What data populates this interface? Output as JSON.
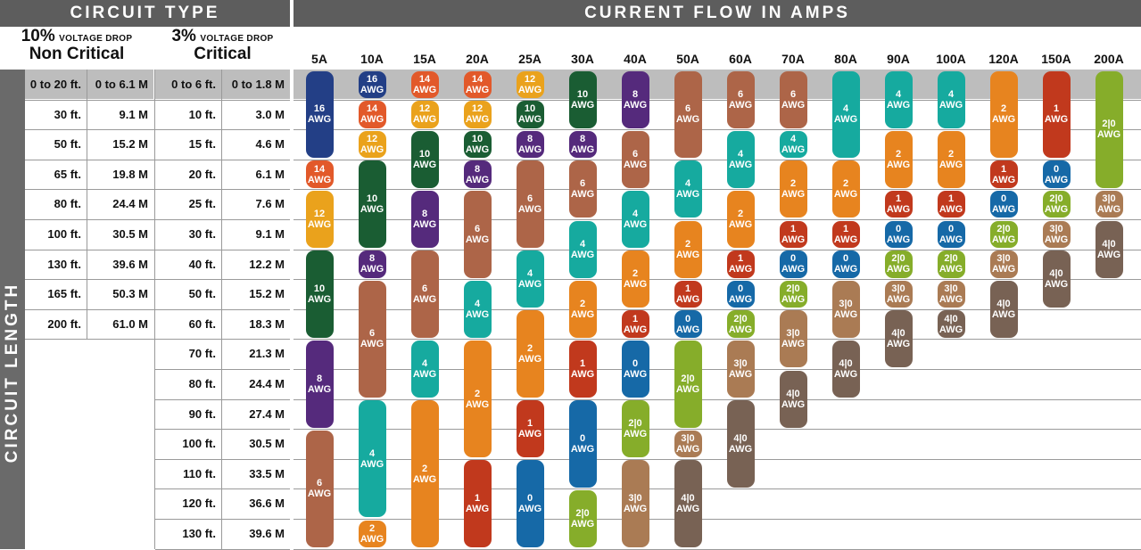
{
  "headers": {
    "circuit_type": "CIRCUIT TYPE",
    "current_flow": "CURRENT FLOW IN AMPS",
    "circuit_length": "CIRCUIT LENGTH",
    "drop10": {
      "pct": "10%",
      "label": "VOLTAGE DROP",
      "name": "Non Critical"
    },
    "drop3": {
      "pct": "3%",
      "label": "VOLTAGE DROP",
      "name": "Critical"
    }
  },
  "colors": {
    "16": "#233f86",
    "14": "#e2592a",
    "12": "#eaa21c",
    "10": "#1a5d33",
    "8": "#552a7c",
    "6": "#ad6548",
    "4": "#16aa9f",
    "2": "#e7841f",
    "1": "#c1391d",
    "0": "#1669a7",
    "2/0": "#86ad2a",
    "3/0": "#aa7b54",
    "4/0": "#786254"
  },
  "chart_data": {
    "type": "table",
    "amps": [
      "5A",
      "10A",
      "15A",
      "20A",
      "25A",
      "30A",
      "40A",
      "50A",
      "60A",
      "70A",
      "80A",
      "90A",
      "100A",
      "120A",
      "150A",
      "200A"
    ],
    "lengths_10pct": [
      [
        "0 to 20 ft.",
        "0 to 6.1 M"
      ],
      [
        "30 ft.",
        "9.1 M"
      ],
      [
        "50 ft.",
        "15.2 M"
      ],
      [
        "65 ft.",
        "19.8 M"
      ],
      [
        "80 ft.",
        "24.4 M"
      ],
      [
        "100 ft.",
        "30.5 M"
      ],
      [
        "130 ft.",
        "39.6 M"
      ],
      [
        "165 ft.",
        "50.3 M"
      ],
      [
        "200 ft.",
        "61.0 M"
      ]
    ],
    "lengths_3pct": [
      [
        "0 to 6 ft.",
        "0 to 1.8 M"
      ],
      [
        "10 ft.",
        "3.0 M"
      ],
      [
        "15 ft.",
        "4.6 M"
      ],
      [
        "20 ft.",
        "6.1 M"
      ],
      [
        "25 ft.",
        "7.6 M"
      ],
      [
        "30 ft.",
        "9.1 M"
      ],
      [
        "40 ft.",
        "12.2 M"
      ],
      [
        "50 ft.",
        "15.2 M"
      ],
      [
        "60 ft.",
        "18.3 M"
      ],
      [
        "70 ft.",
        "21.3 M"
      ],
      [
        "80 ft.",
        "24.4 M"
      ],
      [
        "90 ft.",
        "27.4 M"
      ],
      [
        "100 ft.",
        "30.5 M"
      ],
      [
        "110 ft.",
        "33.5 M"
      ],
      [
        "120 ft.",
        "36.6 M"
      ],
      [
        "130 ft.",
        "39.6 M"
      ]
    ],
    "awg_unit": "AWG",
    "gauges": [
      [
        [
          "16",
          0,
          3
        ],
        [
          "14",
          3,
          4
        ],
        [
          "12",
          4,
          6
        ],
        [
          "10",
          6,
          9
        ],
        [
          "8",
          9,
          12
        ],
        [
          "6",
          12,
          16
        ]
      ],
      [
        [
          "16",
          0,
          1
        ],
        [
          "14",
          1,
          2
        ],
        [
          "12",
          2,
          3
        ],
        [
          "10",
          3,
          6
        ],
        [
          "8",
          6,
          7
        ],
        [
          "6",
          7,
          11
        ],
        [
          "4",
          11,
          15
        ],
        [
          "2",
          15,
          16
        ]
      ],
      [
        [
          "14",
          0,
          1
        ],
        [
          "12",
          1,
          2
        ],
        [
          "10",
          2,
          4
        ],
        [
          "8",
          4,
          6
        ],
        [
          "6",
          6,
          9
        ],
        [
          "4",
          9,
          11
        ],
        [
          "2",
          11,
          16
        ]
      ],
      [
        [
          "14",
          0,
          1
        ],
        [
          "12",
          1,
          2
        ],
        [
          "10",
          2,
          3
        ],
        [
          "8",
          3,
          4
        ],
        [
          "6",
          4,
          7
        ],
        [
          "4",
          7,
          9
        ],
        [
          "2",
          9,
          13
        ],
        [
          "1",
          13,
          16
        ]
      ],
      [
        [
          "12",
          0,
          1
        ],
        [
          "10",
          1,
          2
        ],
        [
          "8",
          2,
          3
        ],
        [
          "6",
          3,
          6
        ],
        [
          "4",
          6,
          8
        ],
        [
          "2",
          8,
          11
        ],
        [
          "1",
          11,
          13
        ],
        [
          "0",
          13,
          16
        ]
      ],
      [
        [
          "10",
          0,
          2
        ],
        [
          "8",
          2,
          3
        ],
        [
          "6",
          3,
          5
        ],
        [
          "4",
          5,
          7
        ],
        [
          "2",
          7,
          9
        ],
        [
          "1",
          9,
          11
        ],
        [
          "0",
          11,
          14
        ],
        [
          "2/0",
          14,
          16
        ]
      ],
      [
        [
          "8",
          0,
          2
        ],
        [
          "6",
          2,
          4
        ],
        [
          "4",
          4,
          6
        ],
        [
          "2",
          6,
          8
        ],
        [
          "1",
          8,
          9
        ],
        [
          "0",
          9,
          11
        ],
        [
          "2/0",
          11,
          13
        ],
        [
          "3/0",
          13,
          16
        ]
      ],
      [
        [
          "6",
          0,
          3
        ],
        [
          "4",
          3,
          5
        ],
        [
          "2",
          5,
          7
        ],
        [
          "1",
          7,
          8
        ],
        [
          "0",
          8,
          9
        ],
        [
          "2/0",
          9,
          12
        ],
        [
          "3/0",
          12,
          13
        ],
        [
          "4/0",
          13,
          16
        ]
      ],
      [
        [
          "6",
          0,
          2
        ],
        [
          "4",
          2,
          4
        ],
        [
          "2",
          4,
          6
        ],
        [
          "1",
          6,
          7
        ],
        [
          "0",
          7,
          8
        ],
        [
          "2/0",
          8,
          9
        ],
        [
          "3/0",
          9,
          11
        ],
        [
          "4/0",
          11,
          14
        ]
      ],
      [
        [
          "6",
          0,
          2
        ],
        [
          "4",
          2,
          3
        ],
        [
          "2",
          3,
          5
        ],
        [
          "1",
          5,
          6
        ],
        [
          "0",
          6,
          7
        ],
        [
          "2/0",
          7,
          8
        ],
        [
          "3/0",
          8,
          10
        ],
        [
          "4/0",
          10,
          12
        ]
      ],
      [
        [
          "4",
          0,
          3
        ],
        [
          "2",
          3,
          5
        ],
        [
          "1",
          5,
          6
        ],
        [
          "0",
          6,
          7
        ],
        [
          "3/0",
          7,
          9
        ],
        [
          "4/0",
          9,
          11
        ]
      ],
      [
        [
          "4",
          0,
          2
        ],
        [
          "2",
          2,
          4
        ],
        [
          "1",
          4,
          5
        ],
        [
          "0",
          5,
          6
        ],
        [
          "2/0",
          6,
          7
        ],
        [
          "3/0",
          7,
          8
        ],
        [
          "4/0",
          8,
          10
        ]
      ],
      [
        [
          "4",
          0,
          2
        ],
        [
          "2",
          2,
          4
        ],
        [
          "1",
          4,
          5
        ],
        [
          "0",
          5,
          6
        ],
        [
          "2/0",
          6,
          7
        ],
        [
          "3/0",
          7,
          8
        ],
        [
          "4/0",
          8,
          9
        ]
      ],
      [
        [
          "2",
          0,
          3
        ],
        [
          "1",
          3,
          4
        ],
        [
          "0",
          4,
          5
        ],
        [
          "2/0",
          5,
          6
        ],
        [
          "3/0",
          6,
          7
        ],
        [
          "4/0",
          7,
          9
        ]
      ],
      [
        [
          "1",
          0,
          3
        ],
        [
          "0",
          3,
          4
        ],
        [
          "2/0",
          4,
          5
        ],
        [
          "3/0",
          5,
          6
        ],
        [
          "4/0",
          6,
          8
        ]
      ],
      [
        [
          "2/0",
          0,
          4
        ],
        [
          "3/0",
          4,
          5
        ],
        [
          "4/0",
          5,
          7
        ]
      ]
    ]
  }
}
